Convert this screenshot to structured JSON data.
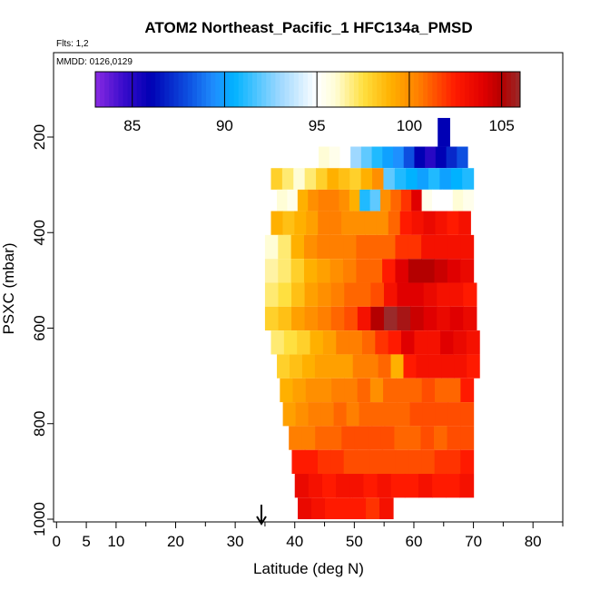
{
  "chart_data": {
    "type": "heatmap",
    "title": "ATOM2 Northeast_Pacific_1 HFC134a_PMSD",
    "flights_note": "Flts: 1,2",
    "dates_note": "MMDD: 0126,0129",
    "xlabel": "Latitude (deg N)",
    "ylabel": "PSXC (mbar)",
    "xlim": [
      -0.5,
      85
    ],
    "ylim": [
      1000,
      0
    ],
    "x_ticks": [
      0,
      5,
      10,
      20,
      30,
      40,
      50,
      60,
      70,
      80
    ],
    "x_minor_ticks": [
      15,
      25,
      35,
      45,
      55,
      65,
      75,
      85
    ],
    "y_ticks": [
      200,
      400,
      600,
      800,
      1000
    ],
    "colorbar": {
      "min": 83,
      "max": 106,
      "ticks": [
        85,
        90,
        95,
        100,
        105
      ],
      "stops": [
        {
          "v": 83,
          "c": "#8a2be2"
        },
        {
          "v": 84.5,
          "c": "#3a0ccc"
        },
        {
          "v": 86,
          "c": "#0000b4"
        },
        {
          "v": 88,
          "c": "#0d4fe0"
        },
        {
          "v": 89.5,
          "c": "#1e90ff"
        },
        {
          "v": 90.5,
          "c": "#00b2ff"
        },
        {
          "v": 93,
          "c": "#9ed8ff"
        },
        {
          "v": 95,
          "c": "#ffffff"
        },
        {
          "v": 96,
          "c": "#fffdd6"
        },
        {
          "v": 97.5,
          "c": "#ffe040"
        },
        {
          "v": 99,
          "c": "#ffb000"
        },
        {
          "v": 100.5,
          "c": "#ff7f00"
        },
        {
          "v": 102.5,
          "c": "#ff1a00"
        },
        {
          "v": 104,
          "c": "#e00000"
        },
        {
          "v": 105,
          "c": "#b40000"
        },
        {
          "v": 106,
          "c": "#9a2a2a"
        }
      ]
    },
    "bands": [
      {
        "p_top": 220,
        "p_bot": 265,
        "lat_min": 44,
        "lat_max": 69,
        "values": [
          96,
          95.5,
          95,
          93,
          92,
          91,
          90,
          89.5,
          88,
          86,
          85,
          86,
          87,
          88
        ]
      },
      {
        "p_top": 265,
        "p_bot": 310,
        "lat_min": 36,
        "lat_max": 70,
        "values": [
          98,
          97,
          96,
          97,
          98,
          99,
          98.5,
          98,
          99,
          100,
          92,
          91,
          90.5,
          90,
          91,
          90,
          90.5,
          91
        ]
      },
      {
        "p_top": 310,
        "p_bot": 355,
        "lat_min": 37,
        "lat_max": 70,
        "values": [
          96,
          95.5,
          99,
          100,
          100.5,
          100.5,
          100,
          99,
          91,
          92,
          100,
          101,
          102,
          104,
          95.5,
          95,
          95,
          96,
          95.5
        ]
      },
      {
        "p_top": 355,
        "p_bot": 405,
        "lat_min": 36,
        "lat_max": 69.5,
        "values": [
          99,
          98.5,
          99,
          99.5,
          100.5,
          100.5,
          100,
          100,
          100,
          100,
          101,
          102.5,
          103,
          103.5,
          103,
          102.5,
          103
        ]
      },
      {
        "p_top": 405,
        "p_bot": 455,
        "lat_min": 35,
        "lat_max": 70,
        "values": [
          96,
          97,
          99,
          100,
          100.5,
          100.5,
          100.5,
          101,
          101,
          101,
          102,
          102,
          103,
          103,
          103,
          103
        ]
      },
      {
        "p_top": 455,
        "p_bot": 505,
        "lat_min": 35,
        "lat_max": 70,
        "values": [
          96.5,
          97,
          98,
          99,
          99.5,
          100,
          100.5,
          101,
          101,
          102.5,
          104,
          105,
          105,
          104.5,
          104,
          103.5
        ]
      },
      {
        "p_top": 505,
        "p_bot": 555,
        "lat_min": 35,
        "lat_max": 70.5,
        "values": [
          97,
          97.5,
          98.5,
          99.5,
          100,
          100.5,
          101,
          101,
          101.5,
          103,
          104,
          104,
          103.5,
          103,
          103,
          102.5
        ]
      },
      {
        "p_top": 555,
        "p_bot": 605,
        "lat_min": 35,
        "lat_max": 70.5,
        "values": [
          98,
          98.5,
          99.5,
          100,
          100.5,
          101,
          101.5,
          103,
          105,
          106,
          105.5,
          104.5,
          104,
          103.5,
          104,
          103.5
        ]
      },
      {
        "p_top": 605,
        "p_bot": 655,
        "lat_min": 36,
        "lat_max": 71,
        "values": [
          97,
          97.5,
          98,
          99,
          99.5,
          100.5,
          100.5,
          101,
          102,
          102.5,
          104,
          103,
          103,
          104,
          103.5,
          103
        ]
      },
      {
        "p_top": 655,
        "p_bot": 705,
        "lat_min": 37,
        "lat_max": 71,
        "values": [
          98,
          98.5,
          99,
          99.5,
          99.5,
          99.5,
          100.5,
          100.5,
          101,
          99,
          102.5,
          103,
          103,
          103,
          103,
          102.5
        ]
      },
      {
        "p_top": 705,
        "p_bot": 755,
        "lat_min": 37.5,
        "lat_max": 70,
        "values": [
          99,
          99.5,
          100,
          100,
          100.5,
          100.5,
          101,
          100,
          101,
          101,
          101,
          101.5,
          101,
          101,
          102.5
        ]
      },
      {
        "p_top": 755,
        "p_bot": 805,
        "lat_min": 38,
        "lat_max": 70,
        "values": [
          99.5,
          100,
          100.5,
          100.5,
          101,
          100.5,
          101,
          101,
          101,
          101,
          101.5,
          101.5,
          101.5,
          101.5,
          101.5
        ]
      },
      {
        "p_top": 805,
        "p_bot": 855,
        "lat_min": 39,
        "lat_max": 70,
        "values": [
          100.5,
          100.5,
          101,
          101,
          101.5,
          101.5,
          101.5,
          101.5,
          101,
          101,
          101.5,
          101,
          101.5,
          101.5
        ]
      },
      {
        "p_top": 855,
        "p_bot": 905,
        "lat_min": 39.5,
        "lat_max": 70,
        "values": [
          102.5,
          102.5,
          102,
          102,
          101.5,
          101.5,
          101.5,
          101.5,
          101.5,
          101.5,
          101.5,
          102,
          102,
          102.5
        ]
      },
      {
        "p_top": 905,
        "p_bot": 955,
        "lat_min": 40,
        "lat_max": 70,
        "values": [
          103.5,
          103,
          102.5,
          103,
          103,
          102.5,
          103,
          102.5,
          102.5,
          103,
          102.5,
          102.5,
          103
        ]
      },
      {
        "p_top": 955,
        "p_bot": 1000,
        "lat_min": 40.5,
        "lat_max": 56.5,
        "values": [
          103.5,
          103,
          102.5,
          102.5,
          102.5,
          102,
          103
        ]
      },
      {
        "p_top": 160,
        "p_bot": 220,
        "lat_min": 64,
        "lat_max": 66,
        "values": [
          86
        ]
      }
    ],
    "annotations": [
      {
        "type": "arrow",
        "lat": 35,
        "direction": "down",
        "note": "location marker"
      }
    ]
  }
}
